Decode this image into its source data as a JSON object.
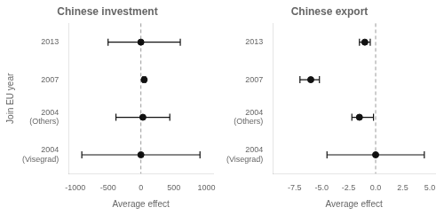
{
  "chart_data": [
    {
      "type": "scatter",
      "title": "Chinese investment",
      "xlabel": "Average effect",
      "ylabel": "Join EU year",
      "categories": [
        "2013",
        "2007",
        "2004\n(Others)",
        "2004\n(Visegrad)"
      ],
      "values": [
        0,
        50,
        30,
        0
      ],
      "ci_low": [
        -500,
        30,
        -380,
        -900
      ],
      "ci_high": [
        600,
        70,
        440,
        900
      ],
      "xlim": [
        -1100,
        1100
      ],
      "xticks": [
        -1000,
        -500,
        0,
        500,
        1000
      ],
      "vline": 0,
      "color": "#111111",
      "grid": false
    },
    {
      "type": "scatter",
      "title": "Chinese export",
      "xlabel": "Average effect",
      "categories": [
        "2013",
        "2007",
        "2004\n(Others)",
        "2004\n(Visegrad)"
      ],
      "values": [
        -1.0,
        -6.0,
        -1.5,
        0.0
      ],
      "ci_low": [
        -1.5,
        -7.0,
        -2.2,
        -4.5
      ],
      "ci_high": [
        -0.5,
        -5.2,
        -0.2,
        4.5
      ],
      "xlim": [
        -9.5,
        5.5
      ],
      "xticks": [
        -7.5,
        {
          "value": -5.0,
          "label": "-5.0"
        },
        -2.5,
        {
          "value": 0.0,
          "label": "0.0"
        },
        2.5,
        {
          "value": 5.0,
          "label": "5.0"
        }
      ],
      "vline": 0,
      "color": "#111111",
      "grid": false
    }
  ]
}
